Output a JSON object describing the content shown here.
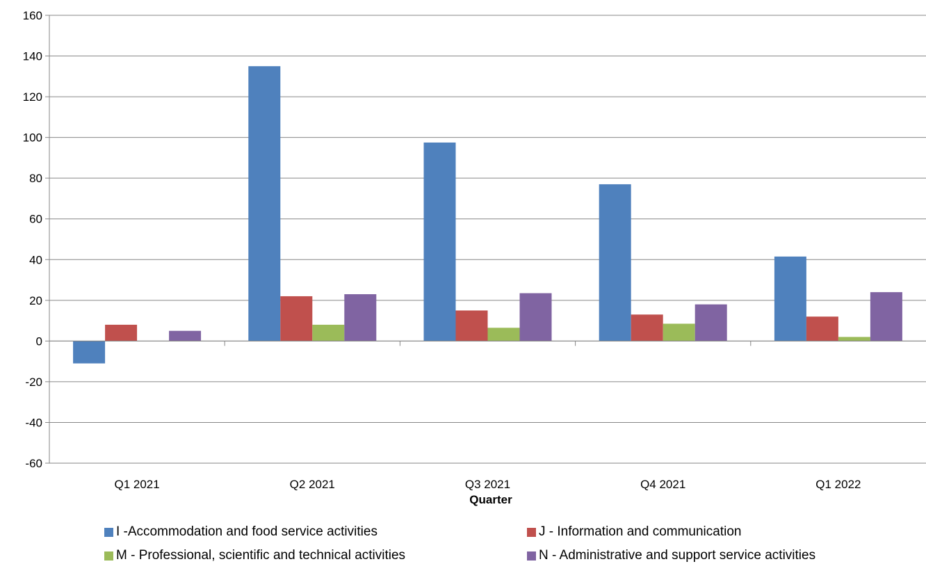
{
  "chart_data": {
    "type": "bar",
    "title": "",
    "xlabel": "Quarter",
    "ylabel": "",
    "categories": [
      "Q1 2021",
      "Q2 2021",
      "Q3 2021",
      "Q4 2021",
      "Q1 2022"
    ],
    "ylim": [
      -60,
      160
    ],
    "yticks": [
      -60,
      -40,
      -20,
      0,
      20,
      40,
      60,
      80,
      100,
      120,
      140,
      160
    ],
    "grid": true,
    "legend_position": "bottom",
    "series": [
      {
        "name": "I -Accommodation and food service activities",
        "color": "#4f81bd",
        "values": [
          -11,
          135,
          97.5,
          77,
          41.5
        ]
      },
      {
        "name": "J - Information and communication",
        "color": "#c0504d",
        "values": [
          8,
          22,
          15,
          13,
          12
        ]
      },
      {
        "name": "M - Professional, scientific and technical activities",
        "color": "#9bbb59",
        "values": [
          0,
          8,
          6.5,
          8.5,
          2
        ]
      },
      {
        "name": "N - Administrative and support service activities",
        "color": "#8064a2",
        "values": [
          5,
          23,
          23.5,
          18,
          24
        ]
      }
    ]
  }
}
